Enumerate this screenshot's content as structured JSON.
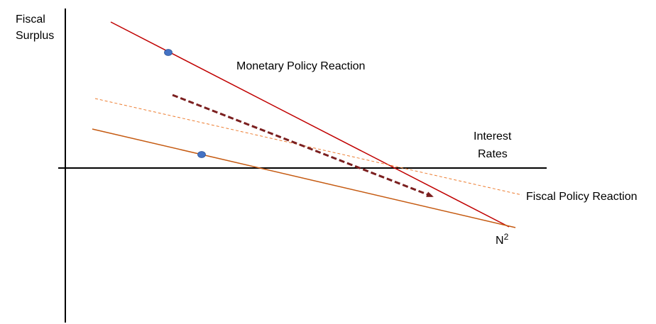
{
  "labels": {
    "y_axis_line1": "Fiscal",
    "y_axis_line2": "Surplus",
    "x_axis_line1": "Interest",
    "x_axis_line2": "Rates",
    "monetary_policy": "Monetary Policy Reaction",
    "fiscal_policy": "Fiscal Policy Reaction",
    "point_base": "N",
    "point_superscript": "2"
  },
  "colors": {
    "axis": "#000000",
    "monetary_line": "#c00000",
    "fiscal_line": "#c55a11",
    "fiscal_dashed": "#ed7d31",
    "shift_arrow": "#7b1f1f",
    "dot": "#4472c4"
  }
}
